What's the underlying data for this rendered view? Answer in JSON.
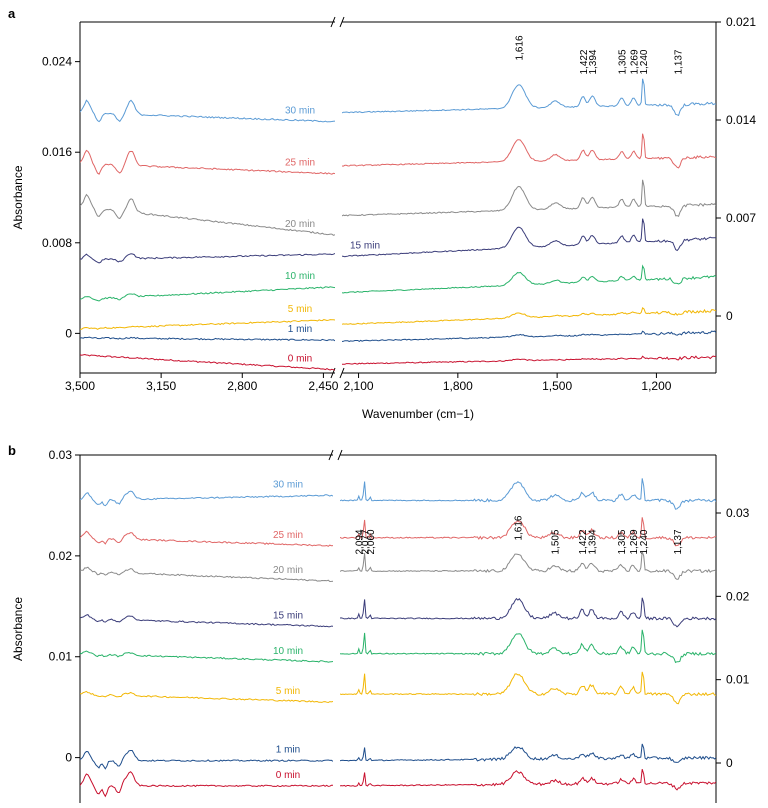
{
  "chart_data": [
    {
      "type": "line",
      "panel": "a",
      "title": "",
      "xlabel": "Wavenumber (cm−1)",
      "ylabel": "Absorbance",
      "x_ticks": [
        "3,500",
        "3,150",
        "2,800",
        "2,450",
        "2,100",
        "1,800",
        "1,500",
        "1,200"
      ],
      "x_tick_values": [
        3500,
        3150,
        2800,
        2450,
        2100,
        1800,
        1500,
        1200
      ],
      "x_break": [
        2400,
        2150
      ],
      "xlim_left": [
        3500,
        2400
      ],
      "xlim_right": [
        2150,
        1020
      ],
      "y_left_ticks": [
        "0",
        "0.008",
        "0.016",
        "0.024"
      ],
      "y_left_tick_values": [
        0,
        0.008,
        0.016,
        0.024
      ],
      "ylim_left": [
        -0.0035,
        0.0275
      ],
      "y_right_ticks": [
        "0",
        "0.007",
        "0.014",
        "0.021"
      ],
      "y_right_tick_values": [
        0,
        0.007,
        0.014,
        0.021
      ],
      "peak_labels": [
        {
          "text": "1,616",
          "x": 1616
        },
        {
          "text": "1,422",
          "x": 1422
        },
        {
          "text": "1,394",
          "x": 1394
        },
        {
          "text": "1,305",
          "x": 1305
        },
        {
          "text": "1,269",
          "x": 1269
        },
        {
          "text": "1,240",
          "x": 1240
        },
        {
          "text": "1,137",
          "x": 1137
        }
      ],
      "series": [
        {
          "name": "0 min",
          "color": "#c8102e",
          "offset": -0.0027,
          "left_start": 0.0008,
          "left_end": -0.0005,
          "left_peaks": 0.0,
          "right_peaks": 0.1,
          "right_tilt": 0.0006
        },
        {
          "name": "1 min",
          "color": "#1f4e8c",
          "offset": -0.0007,
          "left_start": 0.0003,
          "left_end": 0.0001,
          "left_peaks": 0.05,
          "right_peaks": 0.15,
          "right_tilt": 0.0008
        },
        {
          "name": "5 min",
          "color": "#f2b705",
          "offset": 0.0008,
          "left_start": -0.0004,
          "left_end": 0.0004,
          "left_peaks": 0.05,
          "right_peaks": 0.3,
          "right_tilt": 0.0012
        },
        {
          "name": "10 min",
          "color": "#2ab36a",
          "offset": 0.0036,
          "left_start": -0.0006,
          "left_end": 0.0005,
          "left_peaks": 0.25,
          "right_peaks": 0.8,
          "right_tilt": 0.0014
        },
        {
          "name": "15 min",
          "color": "#3b3d7a",
          "offset": 0.0068,
          "left_start": -0.0003,
          "left_end": 0.0002,
          "left_peaks": 0.4,
          "right_peaks": 1.3,
          "right_tilt": 0.0016
        },
        {
          "name": "20 min",
          "color": "#8a8a8a",
          "offset": 0.0104,
          "left_start": 0.0008,
          "left_end": -0.0017,
          "left_peaks": 1.0,
          "right_peaks": 1.5,
          "right_tilt": 0.001
        },
        {
          "name": "25 min",
          "color": "#e06666",
          "offset": 0.0148,
          "left_start": 0.0002,
          "left_end": -0.0007,
          "left_peaks": 1.1,
          "right_peaks": 1.4,
          "right_tilt": 0.0008
        },
        {
          "name": "30 min",
          "color": "#5b9bd5",
          "offset": 0.0195,
          "left_start": 0.0,
          "left_end": -0.0008,
          "left_peaks": 1.0,
          "right_peaks": 1.5,
          "right_tilt": 0.0008
        }
      ]
    },
    {
      "type": "line",
      "panel": "b",
      "title": "",
      "xlabel": "",
      "ylabel": "Absorbance",
      "x_break": [
        2400,
        2150
      ],
      "xlim_left": [
        3500,
        2400
      ],
      "xlim_right": [
        2150,
        1020
      ],
      "y_left_ticks": [
        "0",
        "0.01",
        "0.02",
        "0.03"
      ],
      "y_left_tick_values": [
        0,
        0.01,
        0.02,
        0.03
      ],
      "ylim_left": [
        -0.0045,
        0.03
      ],
      "y_right_ticks": [
        "0",
        "0.01",
        "0.02",
        "0.03"
      ],
      "y_right_tick_values": [
        0,
        0.01,
        0.02,
        0.03
      ],
      "peak_labels": [
        {
          "text": "2,094",
          "x": 2094
        },
        {
          "text": "2,077",
          "x": 2077
        },
        {
          "text": "2,060",
          "x": 2060
        },
        {
          "text": "1,616",
          "x": 1616
        },
        {
          "text": "1,505",
          "x": 1505
        },
        {
          "text": "1,422",
          "x": 1422
        },
        {
          "text": "1,394",
          "x": 1394
        },
        {
          "text": "1,305",
          "x": 1305
        },
        {
          "text": "1,269",
          "x": 1269
        },
        {
          "text": "1,240",
          "x": 1240
        },
        {
          "text": "1,137",
          "x": 1137
        }
      ],
      "series": [
        {
          "name": "0 min",
          "color": "#c8102e",
          "offset": -0.0028,
          "left_start": 0.0,
          "left_end": 0.0,
          "left_peaks": 1.0,
          "right_peaks": 0.8,
          "right_tilt": 0.0003
        },
        {
          "name": "1 min",
          "color": "#1f4e8c",
          "offset": -0.0003,
          "left_start": 0.0,
          "left_end": 0.0,
          "left_peaks": 0.8,
          "right_peaks": 0.8,
          "right_tilt": 0.0003
        },
        {
          "name": "5 min",
          "color": "#f2b705",
          "offset": 0.0063,
          "left_start": 0.0,
          "left_end": -0.0008,
          "left_peaks": 0.2,
          "right_peaks": 1.3,
          "right_tilt": 0.0
        },
        {
          "name": "10 min",
          "color": "#2ab36a",
          "offset": 0.0103,
          "left_start": 0.0,
          "left_end": -0.0008,
          "left_peaks": 0.2,
          "right_peaks": 1.3,
          "right_tilt": 0.0
        },
        {
          "name": "15 min",
          "color": "#3b3d7a",
          "offset": 0.0138,
          "left_start": 0.0,
          "left_end": -0.0008,
          "left_peaks": 0.3,
          "right_peaks": 1.2,
          "right_tilt": 0.0
        },
        {
          "name": "20 min",
          "color": "#8a8a8a",
          "offset": 0.0185,
          "left_start": 0.0,
          "left_end": -0.001,
          "left_peaks": 0.3,
          "right_peaks": 1.1,
          "right_tilt": 0.0
        },
        {
          "name": "25 min",
          "color": "#e06666",
          "offset": 0.0218,
          "left_start": 0.0,
          "left_end": -0.0008,
          "left_peaks": 0.5,
          "right_peaks": 1.1,
          "right_tilt": 0.0
        },
        {
          "name": "30 min",
          "color": "#5b9bd5",
          "offset": 0.0255,
          "left_start": 0.0,
          "left_end": 0.0005,
          "left_peaks": 0.6,
          "right_peaks": 1.2,
          "right_tilt": 0.0
        }
      ]
    }
  ]
}
